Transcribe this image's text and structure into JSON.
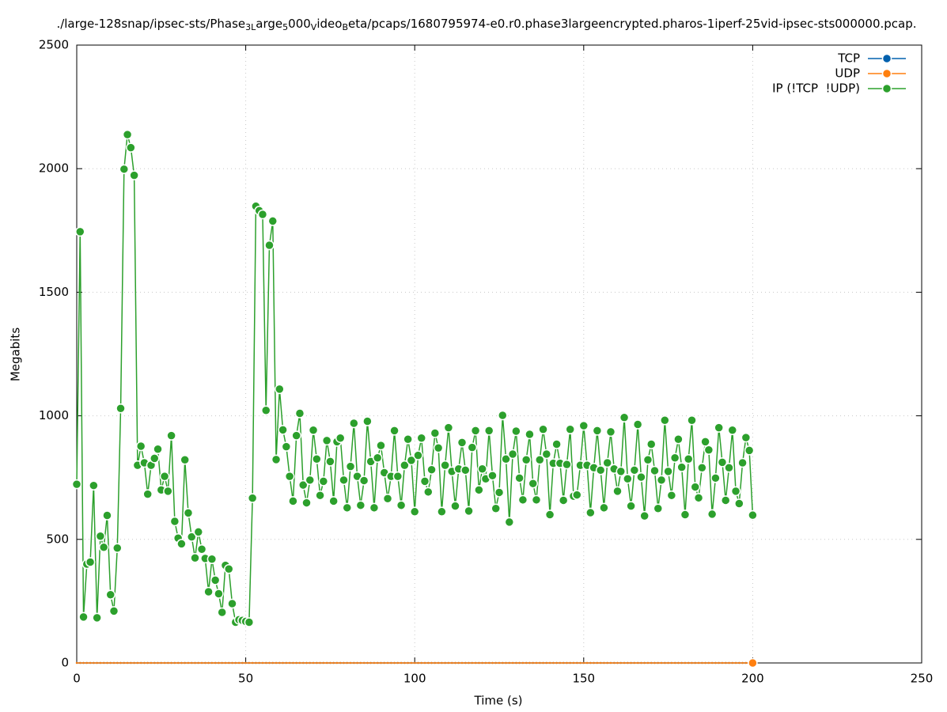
{
  "chart_data": {
    "type": "line",
    "title_parts": [
      "./large-128snap/ipsec-sts/Phase",
      "3L",
      "arge",
      "5",
      "000",
      "V",
      "ideo",
      "B",
      "eta/pcaps/1680795974-e0.r0.phase3largeencrypted.pharos-1iperf-25vid-ipsec-sts000000.pcap."
    ],
    "x_label": "Time (s)",
    "y_label": "Megabits",
    "xlim": [
      0,
      250
    ],
    "xticks": [
      0,
      50,
      100,
      150,
      200,
      250
    ],
    "ylim": [
      0,
      2500
    ],
    "yticks": [
      0,
      500,
      1000,
      1500,
      2000,
      2500
    ],
    "grid": true,
    "legend": "top-right",
    "x": [
      0,
      1,
      2,
      3,
      4,
      5,
      6,
      7,
      8,
      9,
      10,
      11,
      12,
      13,
      14,
      15,
      16,
      17,
      18,
      19,
      20,
      21,
      22,
      23,
      24,
      25,
      26,
      27,
      28,
      29,
      30,
      31,
      32,
      33,
      34,
      35,
      36,
      37,
      38,
      39,
      40,
      41,
      42,
      43,
      44,
      45,
      46,
      47,
      48,
      49,
      50,
      51,
      52,
      53,
      54,
      55,
      56,
      57,
      58,
      59,
      60,
      61,
      62,
      63,
      64,
      65,
      66,
      67,
      68,
      69,
      70,
      71,
      72,
      73,
      74,
      75,
      76,
      77,
      78,
      79,
      80,
      81,
      82,
      83,
      84,
      85,
      86,
      87,
      88,
      89,
      90,
      91,
      92,
      93,
      94,
      95,
      96,
      97,
      98,
      99,
      100,
      101,
      102,
      103,
      104,
      105,
      106,
      107,
      108,
      109,
      110,
      111,
      112,
      113,
      114,
      115,
      116,
      117,
      118,
      119,
      120,
      121,
      122,
      123,
      124,
      125,
      126,
      127,
      128,
      129,
      130,
      131,
      132,
      133,
      134,
      135,
      136,
      137,
      138,
      139,
      140,
      141,
      142,
      143,
      144,
      145,
      146,
      147,
      148,
      149,
      150,
      151,
      152,
      153,
      154,
      155,
      156,
      157,
      158,
      159,
      160,
      161,
      162,
      163,
      164,
      165,
      166,
      167,
      168,
      169,
      170,
      171,
      172,
      173,
      174,
      175,
      176,
      177,
      178,
      179,
      180,
      181,
      182,
      183,
      184,
      185,
      186,
      187,
      188,
      189,
      190,
      191,
      192,
      193,
      194,
      195,
      196,
      197,
      198,
      199,
      200
    ],
    "series": [
      {
        "name": "TCP",
        "color": "#0060ad",
        "values": [
          0,
          0,
          0,
          0,
          0,
          0,
          0,
          0,
          0,
          0,
          0,
          0,
          0,
          0,
          0,
          0,
          0,
          0,
          0,
          0,
          0,
          0,
          0,
          0,
          0,
          0,
          0,
          0,
          0,
          0,
          0,
          0,
          0,
          0,
          0,
          0,
          0,
          0,
          0,
          0,
          0,
          0,
          0,
          0,
          0,
          0,
          0,
          0,
          0,
          0,
          0,
          0,
          0,
          0,
          0,
          0,
          0,
          0,
          0,
          0,
          0,
          0,
          0,
          0,
          0,
          0,
          0,
          0,
          0,
          0,
          0,
          0,
          0,
          0,
          0,
          0,
          0,
          0,
          0,
          0,
          0,
          0,
          0,
          0,
          0,
          0,
          0,
          0,
          0,
          0,
          0,
          0,
          0,
          0,
          0,
          0,
          0,
          0,
          0,
          0,
          0,
          0,
          0,
          0,
          0,
          0,
          0,
          0,
          0,
          0,
          0,
          0,
          0,
          0,
          0,
          0,
          0,
          0,
          0,
          0,
          0,
          0,
          0,
          0,
          0,
          0,
          0,
          0,
          0,
          0,
          0,
          0,
          0,
          0,
          0,
          0,
          0,
          0,
          0,
          0,
          0,
          0,
          0,
          0,
          0,
          0,
          0,
          0,
          0,
          0,
          0,
          0,
          0,
          0,
          0,
          0,
          0,
          0,
          0,
          0,
          0,
          0,
          0,
          0,
          0,
          0,
          0,
          0,
          0,
          0,
          0,
          0,
          0,
          0,
          0,
          0,
          0,
          0,
          0,
          0,
          0,
          0,
          0,
          0,
          0,
          0,
          0,
          0,
          0,
          0,
          0,
          0,
          0,
          0,
          0,
          0,
          0,
          0,
          0,
          0,
          0
        ]
      },
      {
        "name": "UDP",
        "color": "#ff7f0e",
        "values": [
          0,
          0,
          0,
          0,
          0,
          0,
          0,
          0,
          0,
          0,
          0,
          0,
          0,
          0,
          0,
          0,
          0,
          0,
          0,
          0,
          0,
          0,
          0,
          0,
          0,
          0,
          0,
          0,
          0,
          0,
          0,
          0,
          0,
          0,
          0,
          0,
          0,
          0,
          0,
          0,
          0,
          0,
          0,
          0,
          0,
          0,
          0,
          0,
          0,
          0,
          0,
          0,
          0,
          0,
          0,
          0,
          0,
          0,
          0,
          0,
          0,
          0,
          0,
          0,
          0,
          0,
          0,
          0,
          0,
          0,
          0,
          0,
          0,
          0,
          0,
          0,
          0,
          0,
          0,
          0,
          0,
          0,
          0,
          0,
          0,
          0,
          0,
          0,
          0,
          0,
          0,
          0,
          0,
          0,
          0,
          0,
          0,
          0,
          0,
          0,
          0,
          0,
          0,
          0,
          0,
          0,
          0,
          0,
          0,
          0,
          0,
          0,
          0,
          0,
          0,
          0,
          0,
          0,
          0,
          0,
          0,
          0,
          0,
          0,
          0,
          0,
          0,
          0,
          0,
          0,
          0,
          0,
          0,
          0,
          0,
          0,
          0,
          0,
          0,
          0,
          0,
          0,
          0,
          0,
          0,
          0,
          0,
          0,
          0,
          0,
          0,
          0,
          0,
          0,
          0,
          0,
          0,
          0,
          0,
          0,
          0,
          0,
          0,
          0,
          0,
          0,
          0,
          0,
          0,
          0,
          0,
          0,
          0,
          0,
          0,
          0,
          0,
          0,
          0,
          0,
          0,
          0,
          0,
          0,
          0,
          0,
          0,
          0,
          0,
          0,
          0,
          0,
          0,
          0,
          0,
          0,
          0,
          0,
          0,
          0,
          0
        ]
      },
      {
        "name": "IP (!TCP  !UDP)",
        "color": "#2ca02c",
        "values": [
          723,
          1745,
          186,
          400,
          408,
          718,
          183,
          513,
          468,
          597,
          276,
          210,
          465,
          1030,
          1998,
          2138,
          2085,
          1973,
          800,
          877,
          810,
          683,
          800,
          828,
          865,
          700,
          755,
          695,
          920,
          573,
          505,
          482,
          822,
          607,
          510,
          425,
          530,
          460,
          423,
          288,
          420,
          335,
          280,
          205,
          395,
          380,
          240,
          165,
          175,
          172,
          168,
          165,
          667,
          1848,
          1830,
          1815,
          1022,
          1690,
          1788,
          823,
          1108,
          943,
          875,
          755,
          655,
          920,
          1010,
          720,
          648,
          740,
          942,
          825,
          678,
          735,
          900,
          815,
          655,
          895,
          910,
          740,
          628,
          795,
          970,
          755,
          638,
          738,
          978,
          815,
          628,
          830,
          880,
          770,
          665,
          755,
          940,
          755,
          638,
          800,
          905,
          820,
          612,
          840,
          910,
          735,
          692,
          782,
          930,
          870,
          612,
          800,
          952,
          775,
          635,
          785,
          892,
          780,
          615,
          872,
          940,
          700,
          785,
          745,
          940,
          758,
          625,
          690,
          1002,
          825,
          570,
          845,
          938,
          748,
          660,
          822,
          925,
          726,
          660,
          822,
          945,
          845,
          600,
          808,
          885,
          808,
          658,
          803,
          945,
          675,
          680,
          800,
          960,
          800,
          608,
          790,
          940,
          780,
          628,
          810,
          935,
          785,
          695,
          775,
          993,
          745,
          635,
          780,
          965,
          752,
          595,
          822,
          885,
          778,
          625,
          740,
          982,
          775,
          678,
          830,
          905,
          792,
          600,
          825,
          982,
          712,
          668,
          790,
          895,
          862,
          602,
          748,
          952,
          812,
          658,
          790,
          942,
          695,
          645,
          810,
          912,
          860,
          598
        ]
      }
    ]
  }
}
